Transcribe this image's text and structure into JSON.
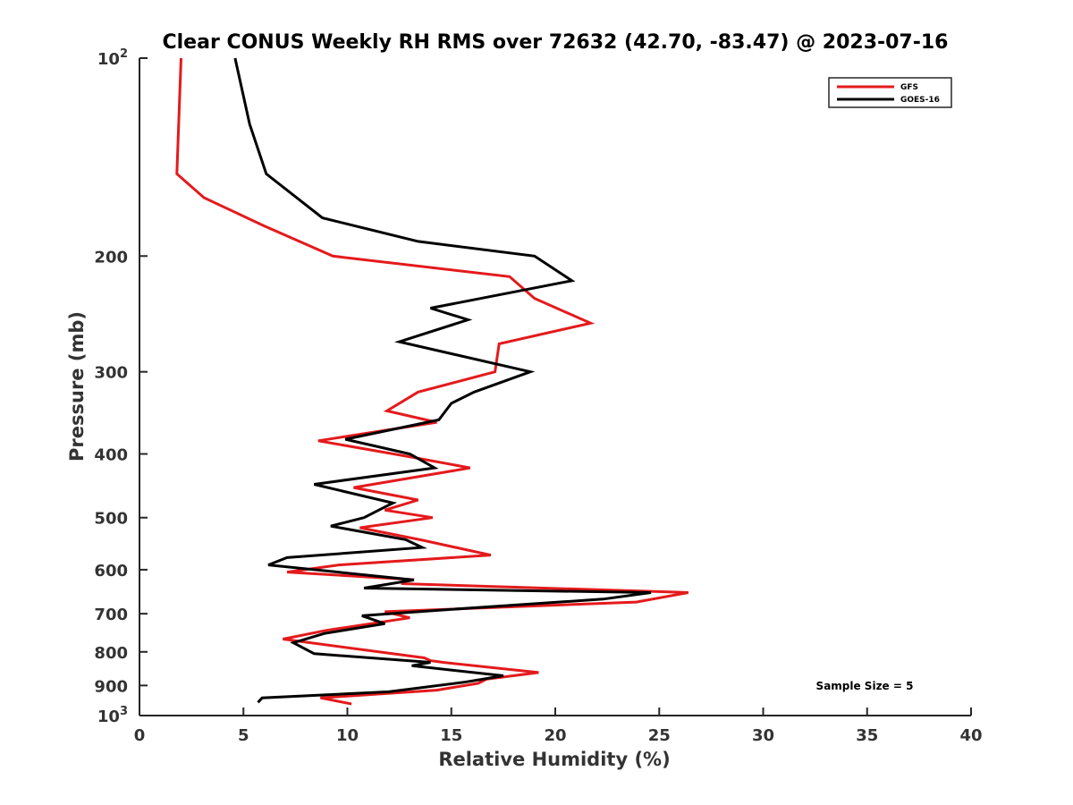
{
  "chart_data": {
    "type": "line",
    "title": "Clear CONUS Weekly RH RMS over 72632 (42.70, -83.47) @ 2023-07-16",
    "xlabel": "Relative Humidity (%)",
    "ylabel": "Pressure (mb)",
    "xlim": [
      0,
      40
    ],
    "ylim": [
      100,
      1000
    ],
    "yscale": "log",
    "y_reversed": true,
    "grid": false,
    "legend_position": "top-right",
    "x_ticks": [
      0,
      5,
      10,
      15,
      20,
      25,
      30,
      35,
      40
    ],
    "y_tick_labels": [
      {
        "value": 100,
        "base": "10",
        "exp": "2"
      },
      {
        "value": 200,
        "base": "200",
        "exp": ""
      },
      {
        "value": 300,
        "base": "300",
        "exp": ""
      },
      {
        "value": 400,
        "base": "400",
        "exp": ""
      },
      {
        "value": 500,
        "base": "500",
        "exp": ""
      },
      {
        "value": 600,
        "base": "600",
        "exp": ""
      },
      {
        "value": 700,
        "base": "700",
        "exp": ""
      },
      {
        "value": 800,
        "base": "800",
        "exp": ""
      },
      {
        "value": 900,
        "base": "900",
        "exp": ""
      },
      {
        "value": 1000,
        "base": "10",
        "exp": "3"
      }
    ],
    "annotation": "Sample Size = 5",
    "series": [
      {
        "name": "GFS",
        "color": "#e41a1c",
        "points": [
          [
            2.0,
            100
          ],
          [
            1.8,
            150
          ],
          [
            3.1,
            163
          ],
          [
            6.0,
            180
          ],
          [
            9.3,
            200
          ],
          [
            17.8,
            215
          ],
          [
            19.0,
            232
          ],
          [
            21.7,
            253
          ],
          [
            17.3,
            272
          ],
          [
            17.1,
            300
          ],
          [
            13.4,
            322
          ],
          [
            11.9,
            344
          ],
          [
            14.3,
            358
          ],
          [
            8.6,
            382
          ],
          [
            13.2,
            405
          ],
          [
            15.9,
            420
          ],
          [
            10.3,
            450
          ],
          [
            13.4,
            470
          ],
          [
            11.8,
            487
          ],
          [
            14.1,
            500
          ],
          [
            10.6,
            518
          ],
          [
            13.6,
            541
          ],
          [
            16.9,
            570
          ],
          [
            9.6,
            590
          ],
          [
            7.1,
            605
          ],
          [
            13.0,
            621
          ],
          [
            12.6,
            630
          ],
          [
            26.4,
            650
          ],
          [
            23.9,
            672
          ],
          [
            11.8,
            695
          ],
          [
            13.0,
            710
          ],
          [
            9.0,
            742
          ],
          [
            6.9,
            765
          ],
          [
            13.7,
            817
          ],
          [
            14.0,
            825
          ],
          [
            14.6,
            830
          ],
          [
            19.2,
            860
          ],
          [
            16.7,
            880
          ],
          [
            16.3,
            893
          ],
          [
            14.3,
            915
          ],
          [
            8.7,
            940
          ],
          [
            10.2,
            960
          ]
        ]
      },
      {
        "name": "GOES-16",
        "color": "#000000",
        "points": [
          [
            4.6,
            100
          ],
          [
            5.3,
            126
          ],
          [
            6.1,
            150
          ],
          [
            8.8,
            175
          ],
          [
            13.4,
            190
          ],
          [
            19.0,
            200
          ],
          [
            20.8,
            218
          ],
          [
            14.0,
            240
          ],
          [
            15.8,
            250
          ],
          [
            12.5,
            270
          ],
          [
            18.8,
            300
          ],
          [
            16.1,
            322
          ],
          [
            15.0,
            335
          ],
          [
            14.4,
            355
          ],
          [
            9.9,
            380
          ],
          [
            13.0,
            400
          ],
          [
            14.2,
            420
          ],
          [
            8.4,
            445
          ],
          [
            12.2,
            475
          ],
          [
            11.9,
            480
          ],
          [
            10.8,
            500
          ],
          [
            9.2,
            515
          ],
          [
            12.8,
            540
          ],
          [
            13.6,
            555
          ],
          [
            7.1,
            575
          ],
          [
            6.2,
            590
          ],
          [
            13.2,
            622
          ],
          [
            10.8,
            640
          ],
          [
            24.6,
            650
          ],
          [
            22.3,
            665
          ],
          [
            14.8,
            690
          ],
          [
            10.7,
            705
          ],
          [
            11.8,
            725
          ],
          [
            8.9,
            750
          ],
          [
            7.4,
            775
          ],
          [
            8.4,
            805
          ],
          [
            14.0,
            830
          ],
          [
            13.1,
            840
          ],
          [
            17.5,
            870
          ],
          [
            15.6,
            890
          ],
          [
            12.0,
            920
          ],
          [
            5.9,
            940
          ],
          [
            5.7,
            955
          ]
        ]
      }
    ]
  }
}
